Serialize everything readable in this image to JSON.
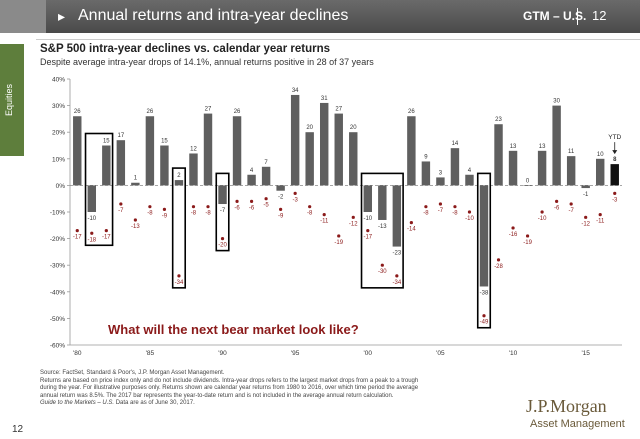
{
  "header": {
    "title": "Annual returns and intra-year declines",
    "code": "GTM – U.S.",
    "page": "12"
  },
  "section_label": "Equities",
  "chart_data": {
    "type": "bar",
    "title": "S&P 500 intra-year declines vs. calendar year returns",
    "subtitle": "Despite average intra-year drops of 14.1%, annual returns positive in 28 of 37 years",
    "ylim": [
      -60,
      40
    ],
    "yticks": [
      -60,
      -50,
      -40,
      -30,
      -20,
      -10,
      0,
      10,
      20,
      30,
      40
    ],
    "ytick_labels": [
      "-60%",
      "-50%",
      "-40%",
      "-30%",
      "-20%",
      "-10%",
      "0%",
      "10%",
      "20%",
      "30%",
      "40%"
    ],
    "years": [
      1980,
      1981,
      1982,
      1983,
      1984,
      1985,
      1986,
      1987,
      1988,
      1989,
      1990,
      1991,
      1992,
      1993,
      1994,
      1995,
      1996,
      1997,
      1998,
      1999,
      2000,
      2001,
      2002,
      2003,
      2004,
      2005,
      2006,
      2007,
      2008,
      2009,
      2010,
      2011,
      2012,
      2013,
      2014,
      2015,
      2016,
      2017
    ],
    "xtick_labels": [
      "'80",
      "'85",
      "'90",
      "'95",
      "'00",
      "'05",
      "'10",
      "'15"
    ],
    "xtick_years": [
      1980,
      1985,
      1990,
      1995,
      2000,
      2005,
      2010,
      2015
    ],
    "series": [
      {
        "name": "Calendar year return",
        "values": [
          26,
          -10,
          15,
          17,
          1,
          26,
          15,
          2,
          12,
          27,
          -7,
          26,
          4,
          7,
          -2,
          34,
          20,
          31,
          27,
          20,
          -10,
          -13,
          -23,
          26,
          9,
          3,
          14,
          4,
          -38,
          23,
          13,
          0,
          13,
          30,
          11,
          -1,
          10,
          8
        ]
      },
      {
        "name": "Intra-year decline",
        "values": [
          -17,
          -18,
          -17,
          -7,
          -13,
          -8,
          -9,
          -34,
          -8,
          -8,
          -20,
          -6,
          -6,
          -5,
          -9,
          -3,
          -8,
          -11,
          -19,
          -12,
          -17,
          -30,
          -34,
          -14,
          -8,
          -7,
          -8,
          -10,
          -49,
          -28,
          -16,
          -19,
          -10,
          -6,
          -7,
          -12,
          -11,
          -3
        ]
      }
    ],
    "ytd_label": "YTD",
    "highlight_groups": [
      [
        1981,
        1982
      ],
      [
        1987
      ],
      [
        1990
      ],
      [
        2000,
        2002
      ],
      [
        2008
      ]
    ],
    "annotation": "What will the next bear market look like?",
    "colors": {
      "bar": "#5f5f5f",
      "ytd_bar": "#111111",
      "decline_dot": "#8b1a1a",
      "annotation": "#8b1a1a",
      "highlight": "#000000"
    }
  },
  "footer": {
    "source": "Source: FactSet, Standard & Poor's, J.P. Morgan Asset Management.",
    "notes": "Returns are based on price index only and do not include dividends. Intra-year drops refers to the largest market drops from a peak to a trough during the year. For illustrative purposes only. Returns shown are calendar year returns from 1980 to 2016, over which time period the average annual return was 8.5%. The 2017 bar represents the year-to-date return and is not included in the average annual return calculation.",
    "gtm_prefix": "Guide to the Markets – U.S.",
    "gtm_suffix": "Data are as of June 30, 2017."
  },
  "logo": {
    "name": "J.P.Morgan",
    "sub": "Asset Management"
  },
  "page_number": "12"
}
